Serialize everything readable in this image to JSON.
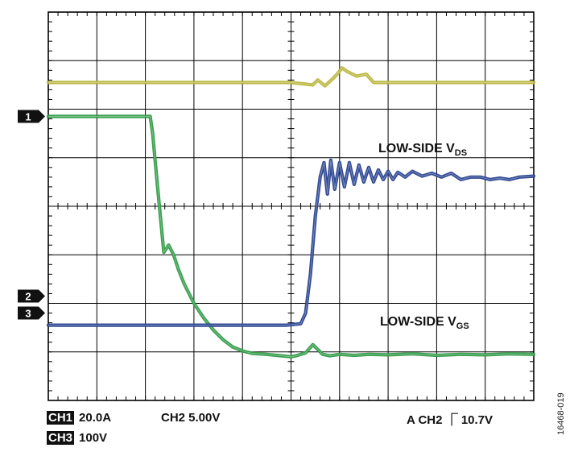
{
  "chart_data": {
    "type": "line",
    "title": "",
    "xlabel": "",
    "ylabel": "",
    "grid": true,
    "divisions": {
      "x": 10,
      "y": 8
    },
    "xlim": [
      0,
      10
    ],
    "ylim": [
      -4,
      4
    ],
    "series": [
      {
        "name": "CH3",
        "color": "#b8b43a",
        "marker": "",
        "x": [
          0,
          5.0,
          5.45,
          5.55,
          5.7,
          5.85,
          5.95,
          6.05,
          6.15,
          6.35,
          6.55,
          6.7,
          6.8,
          7.0,
          10.0
        ],
        "y": [
          2.55,
          2.55,
          2.5,
          2.6,
          2.48,
          2.62,
          2.72,
          2.85,
          2.78,
          2.68,
          2.72,
          2.55,
          2.55,
          2.55,
          2.55
        ]
      },
      {
        "name": "CH1",
        "color": "#2e9a45",
        "marker": "1",
        "x": [
          0,
          2.1,
          2.15,
          2.25,
          2.38,
          2.48,
          2.58,
          2.68,
          2.8,
          3.0,
          3.2,
          3.4,
          3.6,
          3.8,
          4.0,
          4.2,
          4.5,
          4.8,
          5.0,
          5.1,
          5.3,
          5.45,
          5.55,
          5.65,
          5.8,
          6.0,
          6.3,
          6.6,
          7.0,
          7.5,
          8.0,
          8.5,
          9.0,
          9.5,
          10.0
        ],
        "y": [
          1.85,
          1.85,
          1.5,
          0.4,
          -0.95,
          -0.8,
          -1.0,
          -1.3,
          -1.6,
          -2.0,
          -2.3,
          -2.55,
          -2.75,
          -2.9,
          -2.98,
          -3.03,
          -3.05,
          -3.08,
          -3.1,
          -3.08,
          -3.02,
          -2.85,
          -2.95,
          -3.05,
          -3.08,
          -3.05,
          -3.07,
          -3.05,
          -3.06,
          -3.04,
          -3.07,
          -3.05,
          -3.06,
          -3.04,
          -3.05
        ]
      },
      {
        "name": "CH2",
        "color": "#27418f",
        "marker": "2",
        "x": [
          0,
          1.0,
          2.0,
          3.0,
          4.0,
          4.9,
          5.2,
          5.3,
          5.4,
          5.5,
          5.6,
          5.68,
          5.75,
          5.82,
          5.9,
          6.0,
          6.1,
          6.2,
          6.3,
          6.4,
          6.5,
          6.6,
          6.7,
          6.8,
          6.9,
          7.0,
          7.1,
          7.2,
          7.35,
          7.5,
          7.7,
          7.9,
          8.1,
          8.3,
          8.5,
          8.7,
          8.9,
          9.1,
          9.3,
          9.5,
          9.7,
          10.0
        ],
        "y": [
          -2.45,
          -2.45,
          -2.45,
          -2.45,
          -2.45,
          -2.45,
          -2.42,
          -2.2,
          -1.4,
          -0.2,
          0.6,
          0.9,
          0.25,
          0.95,
          0.35,
          0.9,
          0.4,
          0.9,
          0.45,
          0.85,
          0.5,
          0.8,
          0.5,
          0.75,
          0.55,
          0.72,
          0.55,
          0.7,
          0.6,
          0.72,
          0.62,
          0.68,
          0.6,
          0.68,
          0.55,
          0.6,
          0.6,
          0.55,
          0.58,
          0.55,
          0.6,
          0.62
        ]
      }
    ],
    "reference_markers": [
      {
        "label": "1",
        "y": 1.85
      },
      {
        "label": "2",
        "y": -1.85
      },
      {
        "label": "3",
        "y": -2.2
      }
    ],
    "trigger_ticks": {
      "x": 5.0,
      "y": 0
    }
  },
  "annotations": {
    "vds_label_main": "LOW-SIDE V",
    "vds_label_sub": "DS",
    "vgs_label_main": "LOW-SIDE V",
    "vgs_label_sub": "GS"
  },
  "footer": {
    "ch1_tag": "CH1",
    "ch1_scale": "20.0A",
    "ch2_scale": "CH2 5.00V",
    "ch3_tag": "CH3",
    "ch3_scale": "100V",
    "trigger_prefix": "A  CH2",
    "trigger_symbol": "⎾",
    "trigger_level": "10.7V"
  },
  "figure_id": "16468-019"
}
